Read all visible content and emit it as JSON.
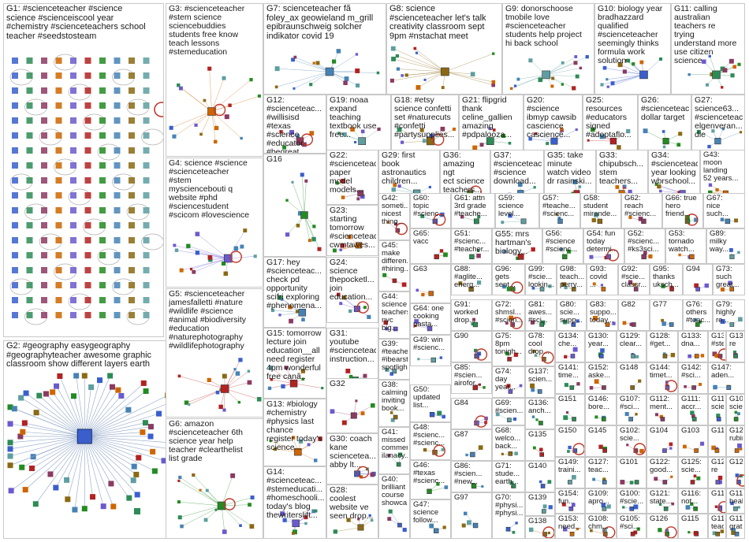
{
  "graph": {
    "groups": [
      {
        "id": "G1",
        "label": "G1: #scienceteacher #science\nscience #scienceiscool year\n#chemistry #scienceteachers school\nteacher #seedstosteam",
        "layout": "grid"
      },
      {
        "id": "G2",
        "label": "G2: #geography easygeography\n#geographyteacher awesome graphic\nclassroom show different layers earth",
        "layout": "star"
      },
      {
        "id": "G3",
        "label": "G3: #scienceteacher\n#stem science\nsciencebuddies\nstudents free know\nteach lessons\n#stemeducation",
        "layout": "cluster"
      },
      {
        "id": "G4",
        "label": "G4: science #science\n#scienceteacher\n#stem\nmysciencebouti q\nwebsite #phd\n#sciencestudent\n#scicom #lovescience",
        "layout": "cluster"
      },
      {
        "id": "G5",
        "label": "G5: #scienceteacher\njamesfalletti #nature\n#wildlife #science\n#animal #biodiversity\n#education\n#naturephotography\n#wildlifephotography",
        "layout": "cluster"
      },
      {
        "id": "G6",
        "label": "G6: amazon\n#scienceteacher 6th\nscience year help\nteacher #clearthelist\nlist grade",
        "layout": "cluster"
      },
      {
        "id": "G7",
        "label": "G7: scienceteacher fã\nfoley_ax geowieland m_grill\nepibraunschweig solcher\nindikator covid 19",
        "layout": "cluster"
      },
      {
        "id": "G8",
        "label": "G8: science\n#scienceteacher let's talk\ncreativity classroom sept\n9pm #nstachat meet",
        "layout": "cluster"
      },
      {
        "id": "G9",
        "label": "G9: donorschoose\ntmobile love\n#scienceteacher\nstudents help project\nhi back school",
        "layout": "cluster"
      },
      {
        "id": "G10",
        "label": "G10: biology year\nbradhazzard\nqualified\n#scienceteacher\nseemingly thinks\nformula work\nsolution",
        "layout": "cluster"
      },
      {
        "id": "G11",
        "label": "G11: calling\naustralian\nteachers re\ntrying\nunderstand more\nuse citizen\nscience",
        "layout": "cluster"
      },
      {
        "id": "G12",
        "label": "G12:\n#scienceteac...\n#willisisd\n#texas\n#science\n#educator\n#begreat\n#startinglineu...",
        "layout": "cluster"
      },
      {
        "id": "G13",
        "label": "G13: #biology\n#chemistry\n#physics last\nchance\nregister today's\nscience...",
        "layout": "cluster"
      },
      {
        "id": "G14",
        "label": "G14:\n#scienceteac...\n#stemeducati...\n#homeschooli...\ntoday's blog\nthewriterslift...",
        "layout": "cluster"
      },
      {
        "id": "G15",
        "label": "G15: tomorrow\nlecture join\neducation__all\nneed register\n4pm wonderful\nfree canâ..",
        "layout": "cluster"
      },
      {
        "id": "G16",
        "label": "G16",
        "layout": "cluster"
      },
      {
        "id": "G17",
        "label": "G17: hey\n#scienceteac...\ncheck pd\nopportunity\nscifri exploring\n#phenomena...",
        "layout": "cluster"
      },
      {
        "id": "G18",
        "label": "G18: #etsy\nscience confetti\nset #naturecuts\n#confetti\n#partysupplies...",
        "layout": "cluster"
      },
      {
        "id": "G19",
        "label": "G19: noaa\nexpand\nteaching\ntextbook use\nfree...",
        "layout": "cluster"
      },
      {
        "id": "G20",
        "label": "G20:\n#science\nibmyp cawsib\ncascience\ncascience...",
        "layout": "cluster"
      },
      {
        "id": "G21",
        "label": "G21: flipgrid\nthank\nceline_gallien\namazing\n#pdpalooza...",
        "layout": "cluster"
      },
      {
        "id": "G22",
        "label": "G22:\n#scienceteac...\npaper\nmodel\nmodels...",
        "layout": "cluster"
      },
      {
        "id": "G23",
        "label": "G23:\nstarting\ntomorrow\n#scienceteac...\ncwmtawes...",
        "layout": "cluster"
      },
      {
        "id": "G24",
        "label": "G24:\nscience\nthepocketl...\njoin\neducation...",
        "layout": "cluster"
      },
      {
        "id": "G25",
        "label": "G25:\nresources\n#educators\nsigned\n#adoptaflo...",
        "layout": "cluster"
      },
      {
        "id": "G26",
        "label": "G26:\n#scienceteac...\ndollar target",
        "layout": "cluster"
      },
      {
        "id": "G27",
        "label": "G27:\nscience63...\n#scienceteac...\nelgenveran...\ndie",
        "layout": "cluster"
      },
      {
        "id": "G28",
        "label": "G28:\ncoolest\nwebsite ve\nseen drop...",
        "layout": "cluster"
      },
      {
        "id": "G29",
        "label": "G29: first\nbook\nastronautics\nchildren...",
        "layout": "cluster"
      },
      {
        "id": "G30",
        "label": "G30: coach\nkane\nsciencetea...\nabby lt...",
        "layout": "cluster"
      },
      {
        "id": "G31",
        "label": "G31:\nyoutube\n#scienceteac...\ninstruction...",
        "layout": "cluster"
      },
      {
        "id": "G32",
        "label": "G32",
        "layout": "cluster"
      },
      {
        "id": "G33",
        "label": "G33:\nchipubsch...\nstem\nteachers...",
        "layout": "cluster"
      },
      {
        "id": "G34",
        "label": "G34:\n#scienceteac...\nyear looking\nwbrschool...",
        "layout": "cluster"
      },
      {
        "id": "G35",
        "label": "G35: take\nminute\nwatch video\ndr rasinski...",
        "layout": "cluster"
      },
      {
        "id": "G36",
        "label": "G36:\namazing ngt\nect science\nteachers...",
        "layout": "cluster"
      },
      {
        "id": "G37",
        "label": "G37:\n#scienceteac...\n#science\ndownload...",
        "layout": "cluster"
      },
      {
        "id": "G38",
        "label": "G38:\ncalming\ninviting\nbook...",
        "layout": "cluster"
      },
      {
        "id": "G39",
        "label": "G39:\n#teache...\n#ibearst...\nspotligh...",
        "layout": "cluster"
      },
      {
        "id": "G40",
        "label": "G40:\nbrilliant\ncourse\nshowca...",
        "layout": "cluster"
      },
      {
        "id": "G41",
        "label": "G41:\nmissed\ncommen...\nilanacy...",
        "layout": "cluster"
      },
      {
        "id": "G42",
        "label": "G42:\nsometi...\nnicest\nthing...",
        "layout": "cluster"
      },
      {
        "id": "G43",
        "label": "G43:\nmoon\nlanding\n52 years...",
        "layout": "cluster"
      },
      {
        "id": "G44",
        "label": "G44:\nscience\nteachers\nnyc big...",
        "layout": "cluster"
      },
      {
        "id": "G45",
        "label": "G45:\nmake\ndifferen...\n#hiring...",
        "layout": "cluster"
      },
      {
        "id": "G46",
        "label": "G46:\n#texas\n#scienc...",
        "layout": "cluster"
      },
      {
        "id": "G47",
        "label": "G47:\nscience\nfollow...",
        "layout": "cluster"
      },
      {
        "id": "G48",
        "label": "G48:\n#scienc...\n#scienc...",
        "layout": "cluster"
      },
      {
        "id": "G49",
        "label": "G49: win\n#scienc...",
        "layout": "cluster"
      },
      {
        "id": "G50",
        "label": "G50:\nupdated\nlist...",
        "layout": "cluster"
      },
      {
        "id": "G51",
        "label": "G51:\n#scienc...\n#teacher...",
        "layout": "cluster"
      },
      {
        "id": "G52",
        "label": "G52:\n#scienc...\n#ks3sci...",
        "layout": "cluster"
      },
      {
        "id": "G53",
        "label": "G53:\ntornado\nwatch...",
        "layout": "cluster"
      },
      {
        "id": "G54",
        "label": "G54: fun\ntoday\ndetermi...",
        "layout": "cluster"
      },
      {
        "id": "G55",
        "label": "G55: mrs\nhartman's\nbiology...",
        "layout": "cluster"
      },
      {
        "id": "G56",
        "label": "G56:\n#science\n#scienc...",
        "layout": "cluster"
      },
      {
        "id": "G57",
        "label": "G57:\n#teache...\n#scienc...",
        "layout": "cluster"
      },
      {
        "id": "G58",
        "label": "G58:\nstudent\nmirande...",
        "layout": "cluster"
      },
      {
        "id": "G59",
        "label": "G59:\nscience\nlevel...",
        "layout": "cluster"
      },
      {
        "id": "G60",
        "label": "G60:\ntopic\n#scienc...",
        "layout": "cluster"
      },
      {
        "id": "G61",
        "label": "G61: attn\n3rd grade\n#teache...",
        "layout": "cluster"
      },
      {
        "id": "G62",
        "label": "G62:\nreach\n#scienc...",
        "layout": "cluster"
      },
      {
        "id": "G63",
        "label": "G63",
        "layout": "cluster"
      },
      {
        "id": "G64",
        "label": "G64: one\ncooking\npasta...",
        "layout": "cluster"
      },
      {
        "id": "G65",
        "label": "G65:\nvacc",
        "layout": "cluster"
      },
      {
        "id": "G66",
        "label": "G66: true\nhero\nfriend...",
        "layout": "cluster"
      },
      {
        "id": "G67",
        "label": "G67:\nnice\nsuch...",
        "layout": "cluster"
      },
      {
        "id": "G68",
        "label": "G68:\nwelco...\nback...",
        "layout": "cluster"
      },
      {
        "id": "G69",
        "label": "G69:\n#scien...",
        "layout": "cluster"
      },
      {
        "id": "G70",
        "label": "G70:\n#physi...\n#physi...",
        "layout": "cluster"
      },
      {
        "id": "G71",
        "label": "G71:\nstude...\nearth...",
        "layout": "cluster"
      },
      {
        "id": "G72",
        "label": "G72:\nshmsl...\n#scien...",
        "layout": "cluster"
      },
      {
        "id": "G73",
        "label": "G73:\nsuch\ngreat...",
        "layout": "cluster"
      },
      {
        "id": "G74",
        "label": "G74:\nday\nyear...",
        "layout": "cluster"
      },
      {
        "id": "G75",
        "label": "G75:\n8pm\ntonigh...",
        "layout": "cluster"
      },
      {
        "id": "G76",
        "label": "G76:\nothers\n#teac...",
        "layout": "cluster"
      },
      {
        "id": "G77",
        "label": "G77",
        "layout": "cluster"
      },
      {
        "id": "G78",
        "label": "G78:\ncool\ndrop...",
        "layout": "cluster"
      },
      {
        "id": "G79",
        "label": "G79:\nhighly\nre...",
        "layout": "cluster"
      },
      {
        "id": "G80",
        "label": "G80:\nscie...\nsupp...",
        "layout": "cluster"
      },
      {
        "id": "G81",
        "label": "G81:\nawes...\n#sci...",
        "layout": "cluster"
      },
      {
        "id": "G82",
        "label": "G82",
        "layout": "cluster"
      },
      {
        "id": "G83",
        "label": "G83:\nsuppo...\ntoday...",
        "layout": "cluster"
      },
      {
        "id": "G84",
        "label": "G84",
        "layout": "cluster"
      },
      {
        "id": "G85",
        "label": "G85:\n#scien...\nairofor...",
        "layout": "cluster"
      },
      {
        "id": "G86",
        "label": "G86:\n#scien...\n#new...",
        "layout": "cluster"
      },
      {
        "id": "G87",
        "label": "G87",
        "layout": "cluster"
      },
      {
        "id": "G88",
        "label": "G88:\n#aglite...\nenerg...",
        "layout": "cluster"
      },
      {
        "id": "G89",
        "label": "G89:\nmilky\nway...",
        "layout": "cluster"
      },
      {
        "id": "G90",
        "label": "G90",
        "layout": "cluster"
      },
      {
        "id": "G91",
        "label": "G91:\nworked\ndrop...",
        "layout": "cluster"
      },
      {
        "id": "G92",
        "label": "G92:\n#scie...\nclassr...",
        "layout": "cluster"
      },
      {
        "id": "G93",
        "label": "G93:\ncovid\n...",
        "layout": "cluster"
      },
      {
        "id": "G94",
        "label": "G94",
        "layout": "cluster"
      },
      {
        "id": "G95",
        "label": "G95:\nthanks\nuksch...",
        "layout": "cluster"
      },
      {
        "id": "G96",
        "label": "G96:\ngets\nsent...",
        "layout": "cluster"
      },
      {
        "id": "G97",
        "label": "G97",
        "layout": "cluster"
      },
      {
        "id": "G98",
        "label": "G98:\nteach...\nperry...",
        "layout": "cluster"
      },
      {
        "id": "G99",
        "label": "G99:\n#scie...\nlookin...",
        "layout": "cluster"
      },
      {
        "id": "G100",
        "label": "G100:\n#scie...",
        "layout": "cluster"
      },
      {
        "id": "G101",
        "label": "G101",
        "layout": "cluster"
      },
      {
        "id": "G102",
        "label": "G102:\nscie...",
        "layout": "cluster"
      },
      {
        "id": "G103",
        "label": "G103",
        "layout": "cluster"
      },
      {
        "id": "G104",
        "label": "G104",
        "layout": "cluster"
      },
      {
        "id": "G105",
        "label": "G105:\n#sci...",
        "layout": "cluster"
      },
      {
        "id": "G106",
        "label": "G106:\nscie...",
        "layout": "cluster"
      },
      {
        "id": "G107",
        "label": "G107:\n#sci...",
        "layout": "cluster"
      },
      {
        "id": "G108",
        "label": "G108:\nchm...",
        "layout": "cluster"
      },
      {
        "id": "G109",
        "label": "G109:\napro...",
        "layout": "cluster"
      },
      {
        "id": "G110",
        "label": "G110:\nscie...",
        "layout": "cluster"
      },
      {
        "id": "G111",
        "label": "G111:\naccr...",
        "layout": "cluster"
      },
      {
        "id": "G112",
        "label": "G112:\nment...",
        "layout": "cluster"
      },
      {
        "id": "G113",
        "label": "G113",
        "layout": "cluster"
      },
      {
        "id": "G114",
        "label": "G114",
        "layout": "cluster"
      },
      {
        "id": "G115",
        "label": "G115",
        "layout": "cluster"
      },
      {
        "id": "G116",
        "label": "G116:\nnot...",
        "layout": "cluster"
      },
      {
        "id": "G117",
        "label": "G117:\ngrat...",
        "layout": "cluster"
      },
      {
        "id": "G118",
        "label": "G118:\nteac...",
        "layout": "cluster"
      },
      {
        "id": "G119",
        "label": "G119:\nhealt...",
        "layout": "cluster"
      },
      {
        "id": "G120",
        "label": "G120",
        "layout": "cluster"
      },
      {
        "id": "G121",
        "label": "G121:\nstate...",
        "layout": "cluster"
      },
      {
        "id": "G122",
        "label": "G122:\ngood...",
        "layout": "cluster"
      },
      {
        "id": "G123",
        "label": "G123:\nrubin...",
        "layout": "cluster"
      },
      {
        "id": "G124",
        "label": "G124:\nre",
        "layout": "cluster"
      },
      {
        "id": "G125",
        "label": "G125:\nscie...",
        "layout": "cluster"
      },
      {
        "id": "G126",
        "label": "G126",
        "layout": "cluster"
      },
      {
        "id": "G127",
        "label": "G127:\nteac...",
        "layout": "cluster"
      },
      {
        "id": "G128",
        "label": "G128:\n#get...",
        "layout": "cluster"
      },
      {
        "id": "G129",
        "label": "G129:\nclear...",
        "layout": "cluster"
      },
      {
        "id": "G130",
        "label": "G130:\nyear...",
        "layout": "cluster"
      },
      {
        "id": "G131",
        "label": "G131:\nre",
        "layout": "cluster"
      },
      {
        "id": "G132",
        "label": "G132:\n#ste...",
        "layout": "cluster"
      },
      {
        "id": "G133",
        "label": "G133:\ndna...",
        "layout": "cluster"
      },
      {
        "id": "G134",
        "label": "G134:\nche...",
        "layout": "cluster"
      },
      {
        "id": "G135",
        "label": "G135",
        "layout": "cluster"
      },
      {
        "id": "G136",
        "label": "G136:\nanch...",
        "layout": "cluster"
      },
      {
        "id": "G137",
        "label": "G137:\nscien...",
        "layout": "cluster"
      },
      {
        "id": "G138",
        "label": "G138",
        "layout": "cluster"
      },
      {
        "id": "G139",
        "label": "G139",
        "layout": "cluster"
      },
      {
        "id": "G140",
        "label": "G140",
        "layout": "cluster"
      },
      {
        "id": "G141",
        "label": "G141:\ntime...",
        "layout": "cluster"
      },
      {
        "id": "G142",
        "label": "G142:\n#sci...",
        "layout": "cluster"
      },
      {
        "id": "G143",
        "label": "G143:\nscie...",
        "layout": "cluster"
      },
      {
        "id": "G144",
        "label": "G144:\ntimet...",
        "layout": "cluster"
      },
      {
        "id": "G145",
        "label": "G145",
        "layout": "cluster"
      },
      {
        "id": "G146",
        "label": "G146:\nbore...",
        "layout": "cluster"
      },
      {
        "id": "G147",
        "label": "G147:\naden...",
        "layout": "cluster"
      },
      {
        "id": "G148",
        "label": "G148",
        "layout": "cluster"
      },
      {
        "id": "G149",
        "label": "G149:\ntraini...",
        "layout": "cluster"
      },
      {
        "id": "G150",
        "label": "G150",
        "layout": "cluster"
      },
      {
        "id": "G151",
        "label": "G151",
        "layout": "cluster"
      },
      {
        "id": "G152",
        "label": "G152:\naske...",
        "layout": "cluster"
      },
      {
        "id": "G153",
        "label": "G153:\nneed...",
        "layout": "cluster"
      },
      {
        "id": "G154",
        "label": "G154:\nfun...",
        "layout": "cluster"
      }
    ]
  }
}
